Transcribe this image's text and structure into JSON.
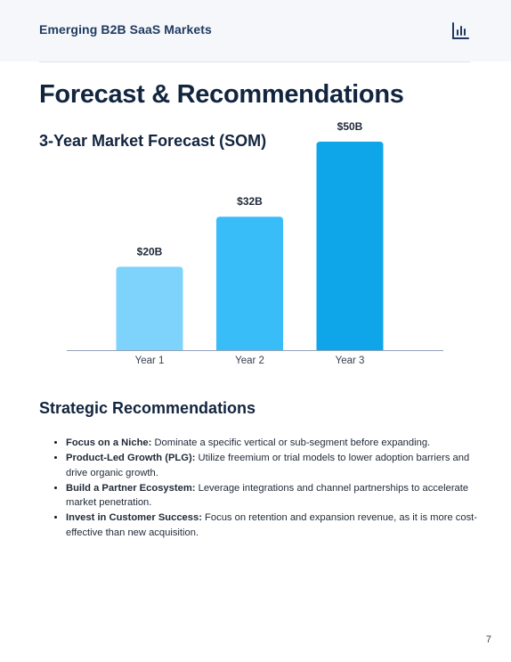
{
  "header": {
    "title": "Emerging B2B SaaS Markets",
    "icon": "bar-chart-icon"
  },
  "page": {
    "title": "Forecast & Recommendations",
    "number": "7"
  },
  "chart_section": {
    "title": "3-Year Market Forecast (SOM)"
  },
  "chart_data": {
    "type": "bar",
    "title": "3-Year Market Forecast (SOM)",
    "categories": [
      "Year 1",
      "Year 2",
      "Year 3"
    ],
    "values": [
      20,
      32,
      50
    ],
    "data_labels": [
      "$20B",
      "$32B",
      "$50B"
    ],
    "ylim": [
      0,
      50
    ],
    "grid": false,
    "legend": "none",
    "colors": [
      "#7dd3fc",
      "#38bdf8",
      "#0ea5e9"
    ],
    "axis_color": "#94a3b8"
  },
  "recommendations": {
    "title": "Strategic Recommendations",
    "items": [
      {
        "label": "Focus on a Niche:",
        "text": " Dominate a specific vertical or sub-segment before expanding."
      },
      {
        "label": "Product-Led Growth (PLG):",
        "text": " Utilize freemium or trial models to lower adoption barriers and drive organic growth."
      },
      {
        "label": "Build a Partner Ecosystem:",
        "text": " Leverage integrations and channel partnerships to accelerate market penetration."
      },
      {
        "label": "Invest in Customer Success:",
        "text": " Focus on retention and expansion revenue, as it is more cost-effective than new acquisition."
      }
    ]
  }
}
